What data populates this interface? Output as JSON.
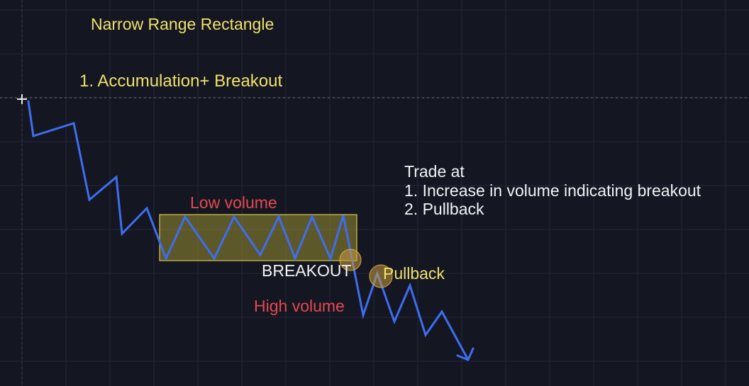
{
  "title": "Narrow Range Rectangle",
  "subtitle": "1. Accumulation+ Breakout",
  "labels": {
    "low_volume": "Low volume",
    "breakout": "BREAKOUT",
    "pullback": "Pullback",
    "high_volume": "High volume"
  },
  "notes": {
    "heading": "Trade at",
    "items": [
      "1. Increase in volume indicating breakout",
      "2. Pullback"
    ]
  },
  "colors": {
    "background": "#141722",
    "grid": "#232735",
    "price_line": "#3f6df0",
    "range_fill": "#b6a832",
    "accent_yellow": "#efe16a",
    "accent_red": "#e6484f",
    "text_white": "#f2f2f2",
    "marker_fill": "#c99a3a"
  },
  "icons": {
    "cursor": "crosshair-cursor-icon",
    "arrow": "arrow-head-icon"
  }
}
